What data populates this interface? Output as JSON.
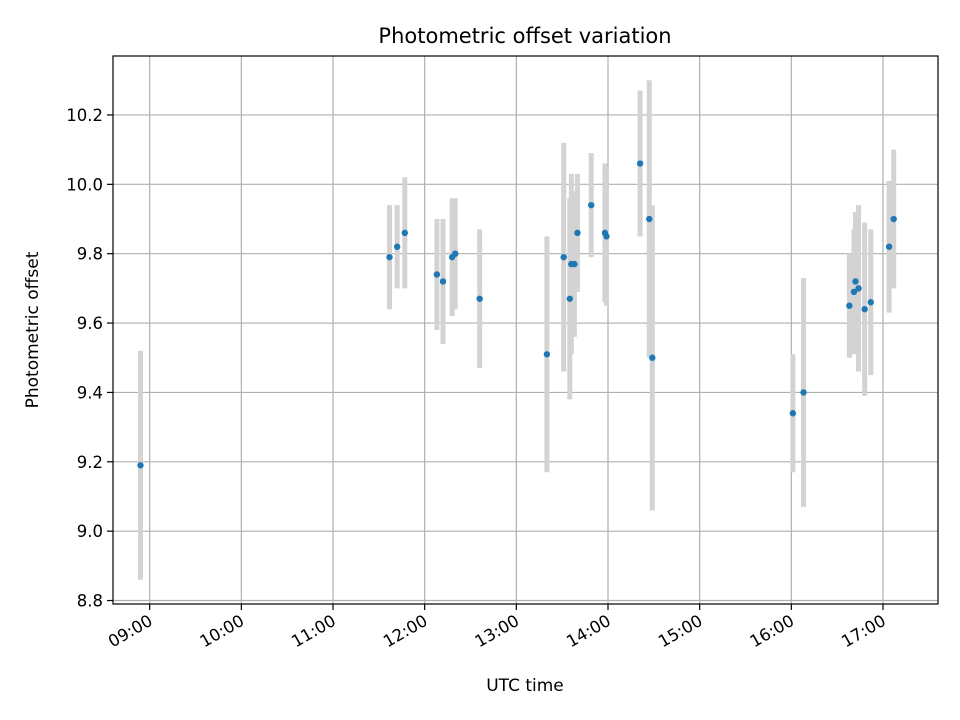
{
  "chart_data": {
    "type": "scatter",
    "title": "Photometric offset variation",
    "xlabel": "UTC time",
    "ylabel": "Photometric offset",
    "grid": true,
    "x_ticks": [
      "09:00",
      "10:00",
      "11:00",
      "12:00",
      "13:00",
      "14:00",
      "15:00",
      "16:00",
      "17:00"
    ],
    "y_ticks": [
      "8.8",
      "9.0",
      "9.2",
      "9.4",
      "9.6",
      "9.8",
      "10.0",
      "10.2"
    ],
    "xlim": [
      "08:36",
      "17:36"
    ],
    "ylim": [
      8.79,
      10.37
    ],
    "colors": {
      "points": "#1f77b4",
      "errorbars": "#d3d3d3",
      "grid": "#b0b0b0"
    },
    "series": [
      {
        "points": [
          {
            "x": "08:54",
            "y": 9.19,
            "err": 0.33
          },
          {
            "x": "11:37",
            "y": 9.79,
            "err": 0.15
          },
          {
            "x": "11:42",
            "y": 9.82,
            "err": 0.12
          },
          {
            "x": "11:47",
            "y": 9.86,
            "err": 0.16
          },
          {
            "x": "12:08",
            "y": 9.74,
            "err": 0.16
          },
          {
            "x": "12:12",
            "y": 9.72,
            "err": 0.18
          },
          {
            "x": "12:18",
            "y": 9.79,
            "err": 0.17
          },
          {
            "x": "12:20",
            "y": 9.8,
            "err": 0.16
          },
          {
            "x": "12:36",
            "y": 9.67,
            "err": 0.2
          },
          {
            "x": "13:20",
            "y": 9.51,
            "err": 0.34
          },
          {
            "x": "13:31",
            "y": 9.79,
            "err": 0.33
          },
          {
            "x": "13:35",
            "y": 9.67,
            "err": 0.29
          },
          {
            "x": "13:36",
            "y": 9.77,
            "err": 0.26
          },
          {
            "x": "13:38",
            "y": 9.77,
            "err": 0.21
          },
          {
            "x": "13:40",
            "y": 9.86,
            "err": 0.17
          },
          {
            "x": "13:49",
            "y": 9.94,
            "err": 0.15
          },
          {
            "x": "13:58",
            "y": 9.86,
            "err": 0.2
          },
          {
            "x": "13:59",
            "y": 9.85,
            "err": 0.2
          },
          {
            "x": "14:21",
            "y": 10.06,
            "err": 0.21
          },
          {
            "x": "14:27",
            "y": 9.9,
            "err": 0.4
          },
          {
            "x": "14:29",
            "y": 9.5,
            "err": 0.44
          },
          {
            "x": "16:01",
            "y": 9.34,
            "err": 0.17
          },
          {
            "x": "16:08",
            "y": 9.4,
            "err": 0.33
          },
          {
            "x": "16:38",
            "y": 9.65,
            "err": 0.15
          },
          {
            "x": "16:41",
            "y": 9.69,
            "err": 0.18
          },
          {
            "x": "16:42",
            "y": 9.72,
            "err": 0.2
          },
          {
            "x": "16:44",
            "y": 9.7,
            "err": 0.24
          },
          {
            "x": "16:48",
            "y": 9.64,
            "err": 0.25
          },
          {
            "x": "16:52",
            "y": 9.66,
            "err": 0.21
          },
          {
            "x": "17:04",
            "y": 9.82,
            "err": 0.19
          },
          {
            "x": "17:07",
            "y": 9.9,
            "err": 0.2
          }
        ]
      }
    ]
  }
}
